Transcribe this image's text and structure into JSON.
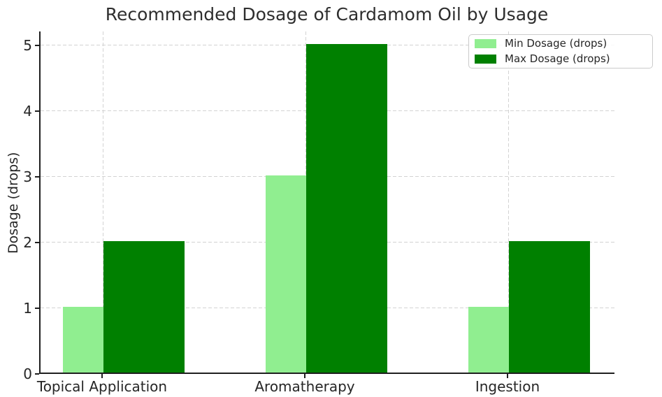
{
  "chart_data": {
    "type": "bar",
    "title": "Recommended Dosage of Cardamom Oil by Usage",
    "xlabel": "",
    "ylabel": "Dosage (drops)",
    "categories": [
      "Topical Application",
      "Aromatherapy",
      "Ingestion"
    ],
    "series": [
      {
        "name": "Min Dosage (drops)",
        "values": [
          1,
          3,
          1
        ],
        "color": "#90EE90"
      },
      {
        "name": "Max Dosage (drops)",
        "values": [
          2,
          5,
          2
        ],
        "color": "#008000"
      }
    ],
    "yticks": [
      0,
      1,
      2,
      3,
      4,
      5
    ],
    "ylim": [
      0,
      5.25
    ],
    "grid": true,
    "grid_style": "dashed",
    "legend_position": "upper right",
    "background_color": "#ffffff",
    "text_color": "#262626"
  }
}
